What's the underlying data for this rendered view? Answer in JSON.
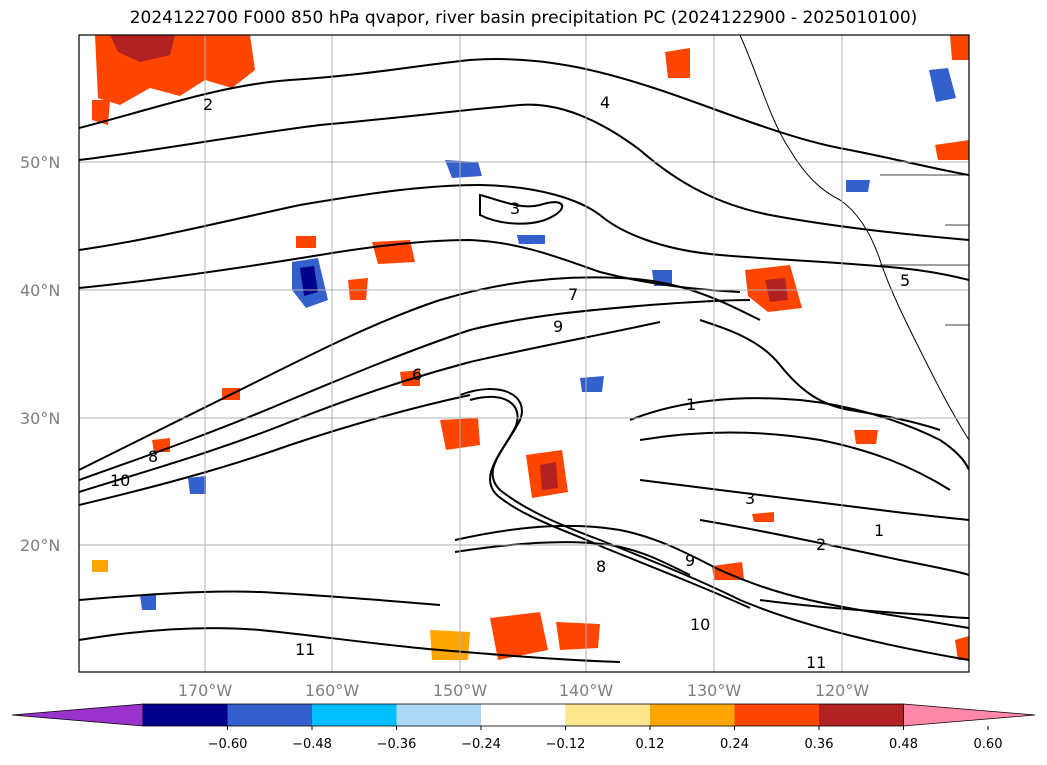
{
  "title": "2024122700 F000 850 hPa qvapor, river basin precipitation PC (2024122900 - 2025010100)",
  "map": {
    "lat_labels": [
      "50°N",
      "40°N",
      "30°N",
      "20°N"
    ],
    "lon_labels": [
      "170°W",
      "160°W",
      "150°W",
      "140°W",
      "130°W",
      "120°W"
    ],
    "contour_labels": [
      "2",
      "3",
      "4",
      "5",
      "6",
      "7",
      "8",
      "9",
      "10",
      "11",
      "1",
      "2",
      "3",
      "1",
      "9",
      "8",
      "10",
      "11"
    ],
    "colors": {
      "grid": "#b0b0b0",
      "contour": "#000000",
      "label": "#7f7f7f"
    }
  },
  "colorbar": {
    "ticks": [
      "−0.60",
      "−0.48",
      "−0.36",
      "−0.24",
      "−0.12",
      "0.12",
      "0.24",
      "0.36",
      "0.48",
      "0.60"
    ],
    "colors": [
      "#9933cc",
      "#00008b",
      "#3360cc",
      "#00bfff",
      "#add8f5",
      "#ffffff",
      "#ffe68c",
      "#ffa500",
      "#ff4500",
      "#b22222",
      "#ff88aa"
    ]
  }
}
